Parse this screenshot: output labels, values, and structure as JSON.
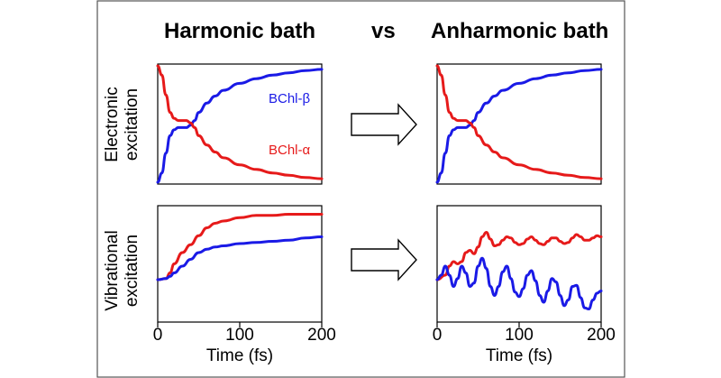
{
  "header": {
    "left_title": "Harmonic bath",
    "vs": "vs",
    "right_title": "Anharmonic bath"
  },
  "row_labels": {
    "top": [
      "Electronic",
      "excitation"
    ],
    "bottom": [
      "Vibrational",
      "excitation"
    ]
  },
  "xaxis": {
    "label": "Time (fs)",
    "ticks": [
      "0",
      "100",
      "200"
    ]
  },
  "colors": {
    "beta": "#1a1ae6",
    "alpha": "#e61a1a",
    "arrow": "#ffffff"
  },
  "legend": {
    "beta": "BChl-β",
    "alpha": "BChl-α"
  },
  "chart_data": [
    {
      "type": "line",
      "panel": "electronic-harmonic",
      "title": "Harmonic bath",
      "xlabel": "",
      "ylabel": "Electronic excitation",
      "xlim": [
        0,
        200
      ],
      "ylim": [
        0,
        1
      ],
      "series": [
        {
          "name": "BChl-β",
          "color": "#1a1ae6",
          "x": [
            0,
            5,
            10,
            15,
            20,
            25,
            30,
            35,
            40,
            45,
            50,
            60,
            70,
            80,
            100,
            120,
            140,
            160,
            180,
            200
          ],
          "y": [
            0.0,
            0.08,
            0.25,
            0.4,
            0.45,
            0.47,
            0.47,
            0.47,
            0.49,
            0.53,
            0.6,
            0.68,
            0.74,
            0.79,
            0.85,
            0.89,
            0.92,
            0.94,
            0.96,
            0.97
          ]
        },
        {
          "name": "BChl-α",
          "color": "#e61a1a",
          "x": [
            0,
            5,
            10,
            15,
            20,
            25,
            30,
            35,
            40,
            45,
            50,
            60,
            70,
            80,
            100,
            120,
            140,
            160,
            180,
            200
          ],
          "y": [
            1.0,
            0.92,
            0.75,
            0.6,
            0.55,
            0.53,
            0.53,
            0.53,
            0.51,
            0.47,
            0.4,
            0.32,
            0.26,
            0.21,
            0.15,
            0.11,
            0.08,
            0.06,
            0.04,
            0.03
          ]
        }
      ]
    },
    {
      "type": "line",
      "panel": "electronic-anharmonic",
      "title": "Anharmonic bath",
      "xlabel": "",
      "ylabel": "",
      "xlim": [
        0,
        200
      ],
      "ylim": [
        0,
        1
      ],
      "series": [
        {
          "name": "BChl-β",
          "color": "#1a1ae6",
          "x": [
            0,
            5,
            10,
            15,
            20,
            25,
            30,
            35,
            40,
            45,
            50,
            60,
            70,
            80,
            100,
            120,
            140,
            160,
            180,
            200
          ],
          "y": [
            0.0,
            0.08,
            0.25,
            0.4,
            0.45,
            0.47,
            0.47,
            0.47,
            0.49,
            0.53,
            0.6,
            0.68,
            0.74,
            0.79,
            0.85,
            0.89,
            0.92,
            0.94,
            0.96,
            0.97
          ]
        },
        {
          "name": "BChl-α",
          "color": "#e61a1a",
          "x": [
            0,
            5,
            10,
            15,
            20,
            25,
            30,
            35,
            40,
            45,
            50,
            60,
            70,
            80,
            100,
            120,
            140,
            160,
            180,
            200
          ],
          "y": [
            1.0,
            0.92,
            0.75,
            0.6,
            0.55,
            0.53,
            0.53,
            0.53,
            0.51,
            0.47,
            0.4,
            0.32,
            0.26,
            0.21,
            0.15,
            0.11,
            0.08,
            0.06,
            0.04,
            0.03
          ]
        }
      ]
    },
    {
      "type": "line",
      "panel": "vibrational-harmonic",
      "xlabel": "Time (fs)",
      "ylabel": "Vibrational excitation",
      "xlim": [
        0,
        200
      ],
      "ylim": [
        0,
        1
      ],
      "xticks": [
        0,
        100,
        200
      ],
      "series": [
        {
          "name": "BChl-α",
          "color": "#e61a1a",
          "x": [
            0,
            10,
            15,
            20,
            30,
            40,
            50,
            60,
            70,
            80,
            100,
            120,
            140,
            160,
            180,
            200
          ],
          "y": [
            0.36,
            0.37,
            0.42,
            0.5,
            0.6,
            0.67,
            0.75,
            0.82,
            0.86,
            0.88,
            0.91,
            0.93,
            0.93,
            0.94,
            0.94,
            0.94
          ]
        },
        {
          "name": "BChl-β",
          "color": "#1a1ae6",
          "x": [
            0,
            10,
            15,
            20,
            30,
            40,
            50,
            60,
            70,
            80,
            100,
            120,
            140,
            160,
            180,
            200
          ],
          "y": [
            0.36,
            0.37,
            0.39,
            0.42,
            0.48,
            0.54,
            0.6,
            0.63,
            0.65,
            0.66,
            0.68,
            0.69,
            0.7,
            0.71,
            0.73,
            0.74
          ]
        }
      ]
    },
    {
      "type": "line",
      "panel": "vibrational-anharmonic",
      "xlabel": "Time (fs)",
      "ylabel": "",
      "xlim": [
        0,
        200
      ],
      "ylim": [
        0,
        1
      ],
      "xticks": [
        0,
        100,
        200
      ],
      "series": [
        {
          "name": "BChl-α",
          "color": "#e61a1a",
          "x": [
            0,
            10,
            15,
            20,
            25,
            30,
            35,
            40,
            45,
            50,
            55,
            60,
            65,
            70,
            75,
            80,
            85,
            90,
            95,
            100,
            105,
            110,
            115,
            120,
            125,
            130,
            135,
            140,
            145,
            150,
            155,
            160,
            165,
            170,
            175,
            180,
            185,
            190,
            195,
            200
          ],
          "y": [
            0.36,
            0.4,
            0.48,
            0.52,
            0.5,
            0.52,
            0.6,
            0.62,
            0.59,
            0.65,
            0.74,
            0.78,
            0.72,
            0.66,
            0.67,
            0.71,
            0.74,
            0.73,
            0.69,
            0.67,
            0.68,
            0.72,
            0.74,
            0.71,
            0.68,
            0.67,
            0.7,
            0.73,
            0.73,
            0.7,
            0.68,
            0.69,
            0.73,
            0.76,
            0.74,
            0.71,
            0.71,
            0.73,
            0.75,
            0.74
          ]
        },
        {
          "name": "BChl-β",
          "color": "#1a1ae6",
          "x": [
            0,
            5,
            10,
            15,
            20,
            25,
            30,
            35,
            40,
            45,
            50,
            55,
            60,
            65,
            70,
            75,
            80,
            85,
            90,
            95,
            100,
            105,
            110,
            115,
            120,
            125,
            130,
            135,
            140,
            145,
            150,
            155,
            160,
            165,
            170,
            175,
            180,
            185,
            190,
            195,
            200
          ],
          "y": [
            0.36,
            0.4,
            0.48,
            0.4,
            0.3,
            0.37,
            0.48,
            0.42,
            0.3,
            0.33,
            0.48,
            0.55,
            0.46,
            0.3,
            0.22,
            0.3,
            0.43,
            0.48,
            0.37,
            0.25,
            0.21,
            0.28,
            0.4,
            0.44,
            0.35,
            0.22,
            0.16,
            0.26,
            0.37,
            0.34,
            0.22,
            0.13,
            0.18,
            0.3,
            0.31,
            0.2,
            0.11,
            0.1,
            0.18,
            0.24,
            0.26
          ]
        }
      ]
    }
  ]
}
